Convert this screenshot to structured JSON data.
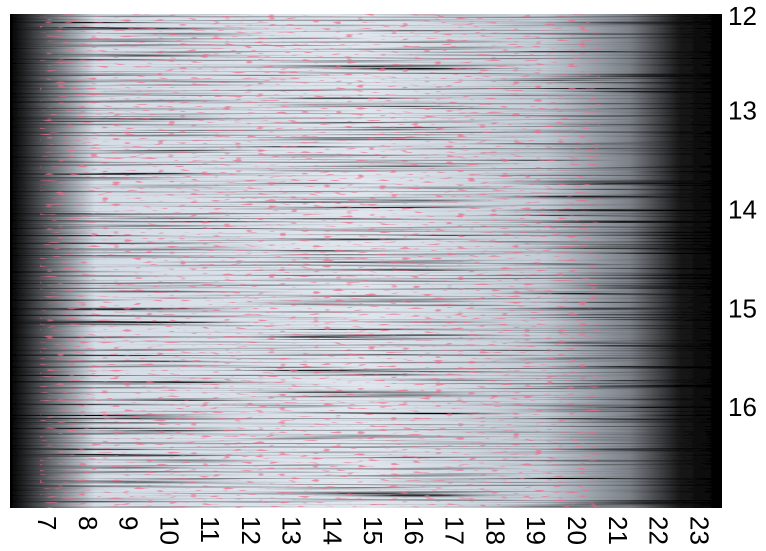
{
  "chart_data": {
    "type": "heatmap",
    "xlim": [
      6.14,
      23.61
    ],
    "xticks": [
      7,
      8,
      9,
      10,
      11,
      12,
      13,
      14,
      15,
      16,
      17,
      18,
      19,
      20,
      21,
      22,
      23
    ],
    "ylim": [
      12,
      17
    ],
    "yticks": [
      12,
      13,
      14,
      15,
      16
    ],
    "y_axis_side": "right",
    "y_inverted": true,
    "grid": false
  }
}
